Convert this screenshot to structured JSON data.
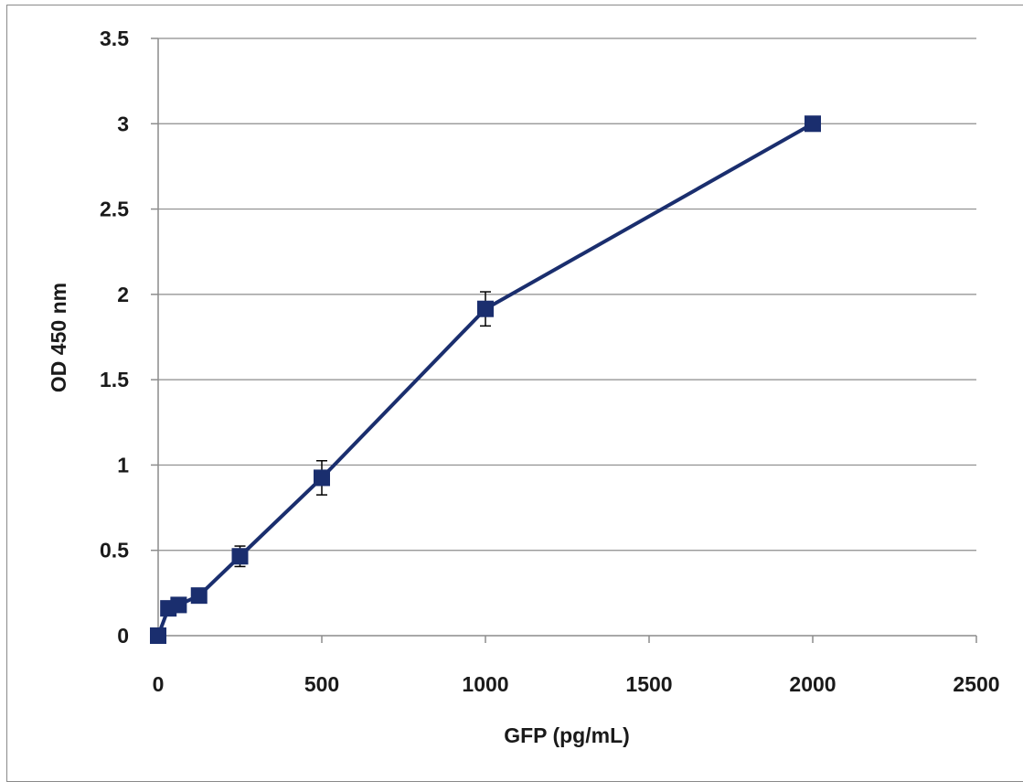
{
  "chart_data": {
    "type": "line",
    "xlabel": "GFP (pg/mL)",
    "ylabel": "OD 450 nm",
    "xlim": [
      0,
      2500
    ],
    "ylim": [
      0,
      3.5
    ],
    "x_ticks": [
      0,
      500,
      1000,
      1500,
      2000,
      2500
    ],
    "y_ticks": [
      0,
      0.5,
      1,
      1.5,
      2,
      2.5,
      3,
      3.5
    ],
    "y_tick_labels": [
      "0",
      "0.5",
      "1",
      "1.5",
      "2",
      "2.5",
      "3",
      "3.5"
    ],
    "x_tick_labels": [
      "0",
      "500",
      "1000",
      "1500",
      "2000",
      "2500"
    ],
    "grid": "horizontal",
    "series": [
      {
        "color": "#1a2e6e",
        "marker": "square",
        "x": [
          0,
          31.25,
          62.5,
          125,
          250,
          500,
          1000,
          2000
        ],
        "y": [
          0,
          0.16,
          0.18,
          0.235,
          0.465,
          0.925,
          1.915,
          3.0
        ],
        "error": [
          0,
          0.0,
          0.0,
          0.0,
          0.06,
          0.1,
          0.1,
          0.0
        ]
      }
    ]
  }
}
